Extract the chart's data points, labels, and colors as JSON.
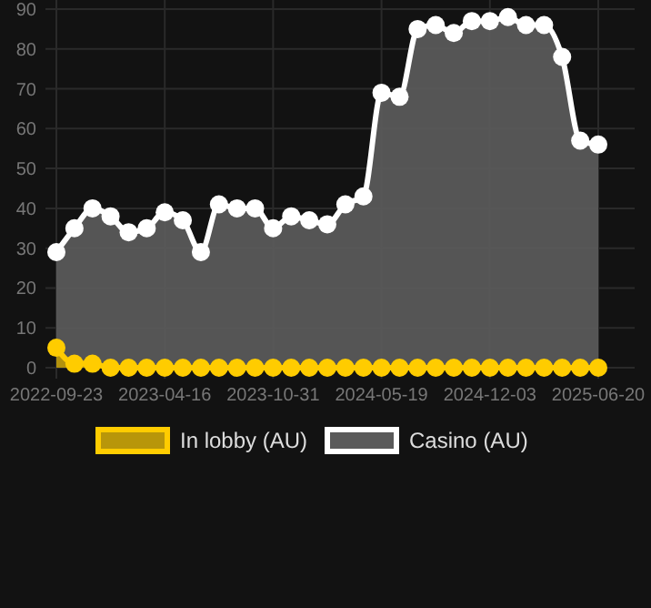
{
  "chart_data": {
    "type": "area",
    "categories": [
      "2022-09-23",
      null,
      null,
      null,
      null,
      null,
      "2023-04-16",
      null,
      null,
      null,
      null,
      null,
      "2023-10-31",
      null,
      null,
      null,
      null,
      null,
      "2024-05-19",
      null,
      null,
      null,
      null,
      null,
      "2024-12-03",
      null,
      null,
      null,
      null,
      null,
      "2025-06-20"
    ],
    "series": [
      {
        "name": "In lobby (AU)",
        "color": "#ffcc00",
        "values": [
          5,
          1,
          1,
          0,
          0,
          0,
          0,
          0,
          0,
          0,
          0,
          0,
          0,
          0,
          0,
          0,
          0,
          0,
          0,
          0,
          0,
          0,
          0,
          0,
          0,
          0,
          0,
          0,
          0,
          0,
          0
        ]
      },
      {
        "name": "Casino (AU)",
        "color": "#ffffff",
        "values": [
          29,
          35,
          40,
          38,
          34,
          35,
          39,
          37,
          29,
          41,
          40,
          40,
          35,
          38,
          37,
          36,
          41,
          43,
          69,
          68,
          85,
          86,
          84,
          87,
          87,
          88,
          86,
          86,
          78,
          57,
          56
        ]
      }
    ],
    "ylim": [
      0,
      90
    ],
    "yticks": [
      0,
      10,
      20,
      30,
      40,
      50,
      60,
      70,
      80,
      90
    ],
    "grid": true,
    "legend": "bottom",
    "marker": "circle",
    "line_style": "solid"
  }
}
